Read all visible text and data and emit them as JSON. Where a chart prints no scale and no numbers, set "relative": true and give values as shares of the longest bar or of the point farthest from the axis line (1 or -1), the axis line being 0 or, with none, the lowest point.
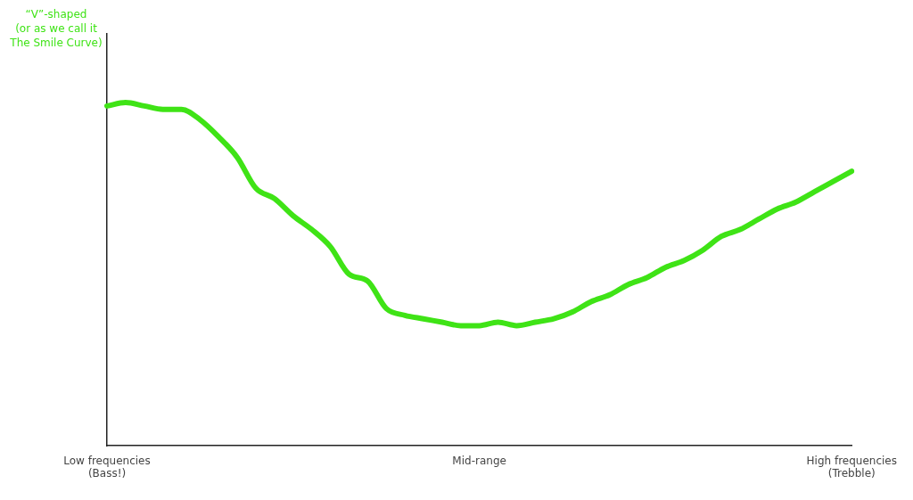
{
  "chart_data": {
    "type": "line",
    "title": "“V”-shaped\n(or as we call it\nThe Smile Curve)",
    "relative": true,
    "categories": [
      "Low frequencies\n(Bass!)",
      null,
      null,
      null,
      null,
      null,
      null,
      null,
      null,
      null,
      null,
      null,
      null,
      null,
      null,
      null,
      null,
      null,
      null,
      null,
      "Mid-range",
      null,
      null,
      null,
      null,
      null,
      null,
      null,
      null,
      null,
      null,
      null,
      null,
      null,
      null,
      null,
      null,
      null,
      null,
      null,
      "High frequencies\n(Trebble)"
    ],
    "series": [
      {
        "color": "#3fe316",
        "values": [
          0.99,
          1,
          0.99,
          0.98,
          0.98,
          0.95,
          0.9,
          0.84,
          0.75,
          0.72,
          0.67,
          0.63,
          0.58,
          0.5,
          0.48,
          0.4,
          0.38,
          0.37,
          0.36,
          0.35,
          0.35,
          0.36,
          0.35,
          0.36,
          0.37,
          0.39,
          0.42,
          0.44,
          0.47,
          0.49,
          0.52,
          0.54,
          0.57,
          0.61,
          0.63,
          0.66,
          0.69,
          0.71,
          0.74,
          0.77,
          0.8
        ]
      }
    ],
    "grid": false,
    "legend": false,
    "marker": "none",
    "line_style": "solid"
  }
}
